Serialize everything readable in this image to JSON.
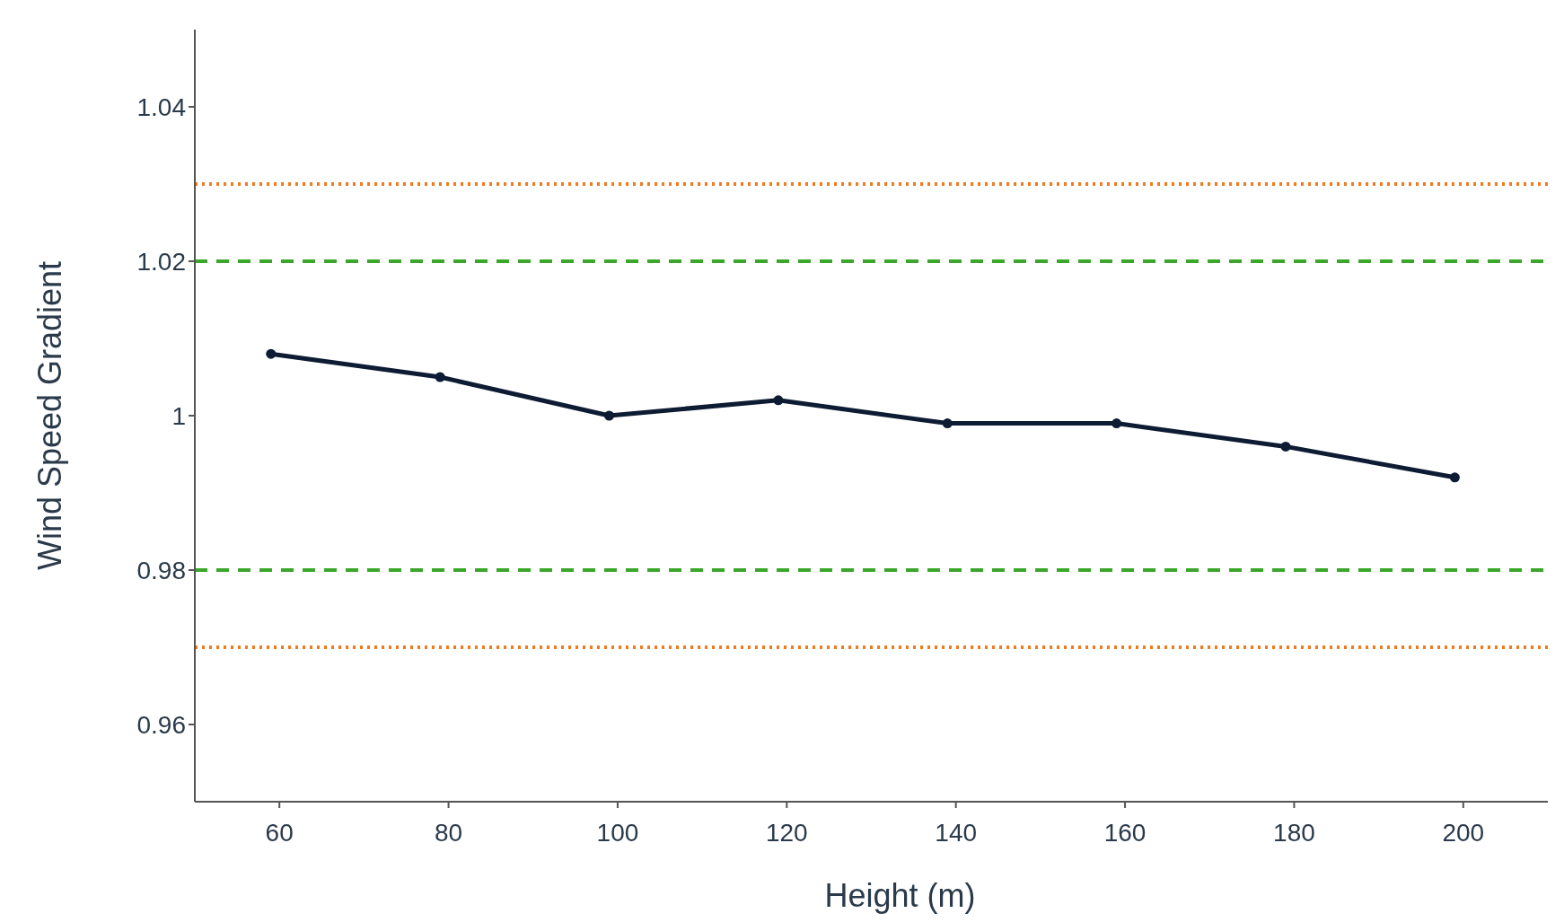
{
  "chart_data": {
    "type": "line",
    "xlabel": "Height (m)",
    "ylabel": "Wind Speed Gradient",
    "x": [
      59,
      79,
      99,
      119,
      139,
      159,
      179,
      199
    ],
    "series": [
      {
        "color": "#0d1b33",
        "values": [
          1.008,
          1.005,
          1.0,
          1.002,
          0.999,
          0.999,
          0.996,
          0.992
        ]
      }
    ],
    "xlim": [
      50,
      210
    ],
    "xticks": [
      60,
      80,
      100,
      120,
      140,
      160,
      180,
      200
    ],
    "ylim": [
      0.95,
      1.05
    ],
    "yticks": [
      {
        "value": 0.96,
        "label": "0.96"
      },
      {
        "value": 0.98,
        "label": "0.98"
      },
      {
        "value": 1,
        "label": "1"
      },
      {
        "value": 1.02,
        "label": "1.02"
      },
      {
        "value": 1.04,
        "label": "1.04"
      }
    ],
    "ref_lines": [
      {
        "axis": "y",
        "value": 1.03,
        "color": "#f07a1e",
        "line_style": "dotted"
      },
      {
        "axis": "y",
        "value": 1.02,
        "color": "#3aa62a",
        "line_style": "dashed"
      },
      {
        "axis": "y",
        "value": 0.98,
        "color": "#3aa62a",
        "line_style": "dashed"
      },
      {
        "axis": "y",
        "value": 0.97,
        "color": "#f07a1e",
        "line_style": "dotted"
      }
    ],
    "marker": "circle",
    "line_style": "solid",
    "grid": false
  }
}
